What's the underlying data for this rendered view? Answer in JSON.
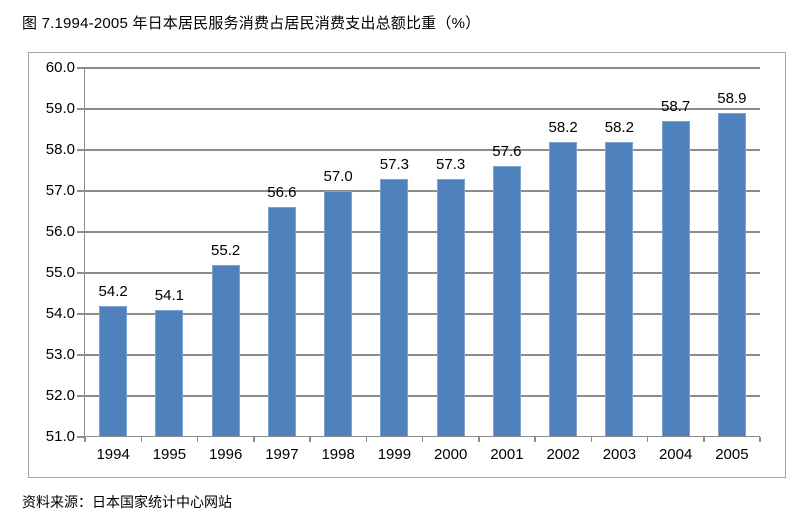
{
  "title": "图 7.1994-2005 年日本居民服务消费占居民消费支出总额比重（%）",
  "source_note": "资料来源：日本国家统计中心网站",
  "colors": {
    "bar": "#4f81bd",
    "bar_edge": "#7da3cf",
    "gridline": "#8c8c8c",
    "frame_border": "#a6a6a6",
    "text": "#000000",
    "background": "#ffffff"
  },
  "chart_data": {
    "type": "bar",
    "title": "图 7.1994-2005 年日本居民服务消费占居民消费支出总额比重（%）",
    "categories": [
      "1994",
      "1995",
      "1996",
      "1997",
      "1998",
      "1999",
      "2000",
      "2001",
      "2002",
      "2003",
      "2004",
      "2005"
    ],
    "values": [
      54.2,
      54.1,
      55.2,
      56.6,
      57.0,
      57.3,
      57.3,
      57.6,
      58.2,
      58.2,
      58.7,
      58.9
    ],
    "data_labels": [
      "54.2",
      "54.1",
      "55.2",
      "56.6",
      "57.0",
      "57.3",
      "57.3",
      "57.6",
      "58.2",
      "58.2",
      "58.7",
      "58.9"
    ],
    "xlabel": "",
    "ylabel": "",
    "ylim": [
      51.0,
      60.0
    ],
    "ytick_step": 1.0,
    "ytick_labels": [
      "60.0",
      "59.0",
      "58.0",
      "57.0",
      "56.0",
      "55.0",
      "54.0",
      "53.0",
      "52.0",
      "51.0"
    ],
    "grid": true,
    "legend": false,
    "source": "资料来源：日本国家统计中心网站"
  }
}
